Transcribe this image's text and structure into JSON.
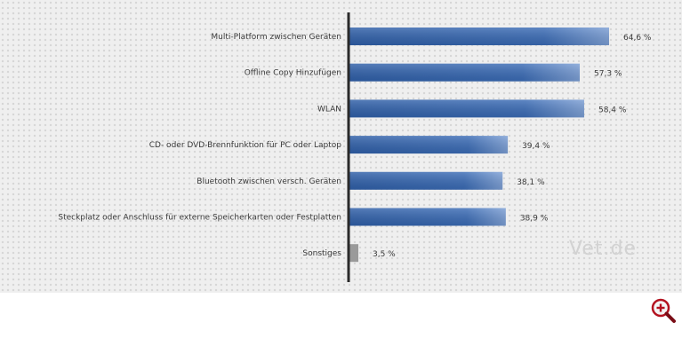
{
  "chart_data": {
    "type": "bar",
    "orientation": "horizontal",
    "categories": [
      "Multi-Platform zwischen Geräten",
      "Offline Copy Hinzufügen",
      "WLAN",
      "CD- oder DVD-Brennfunktion für PC oder Laptop",
      "Bluetooth zwischen versch. Geräten",
      "Steckplatz oder Anschluss für externe Speicherkarten oder Festplatten",
      "Sonstiges"
    ],
    "values": [
      64.6,
      57.3,
      58.4,
      39.4,
      38.1,
      38.9,
      3.5
    ],
    "value_labels": [
      "64,6 %",
      "57,3 %",
      "58,4 %",
      "39,4 %",
      "38,1 %",
      "38,9 %",
      "3,5 %"
    ],
    "xlim": [
      0,
      70
    ],
    "colors": {
      "bar": "#2f5fa8",
      "bar_light": "#6f95d0",
      "other_bar": "#9a9a9a",
      "axis": "#2a2a2a"
    },
    "watermark": "Vet.de"
  },
  "controls": {
    "zoom_icon": "zoom-in-icon"
  }
}
